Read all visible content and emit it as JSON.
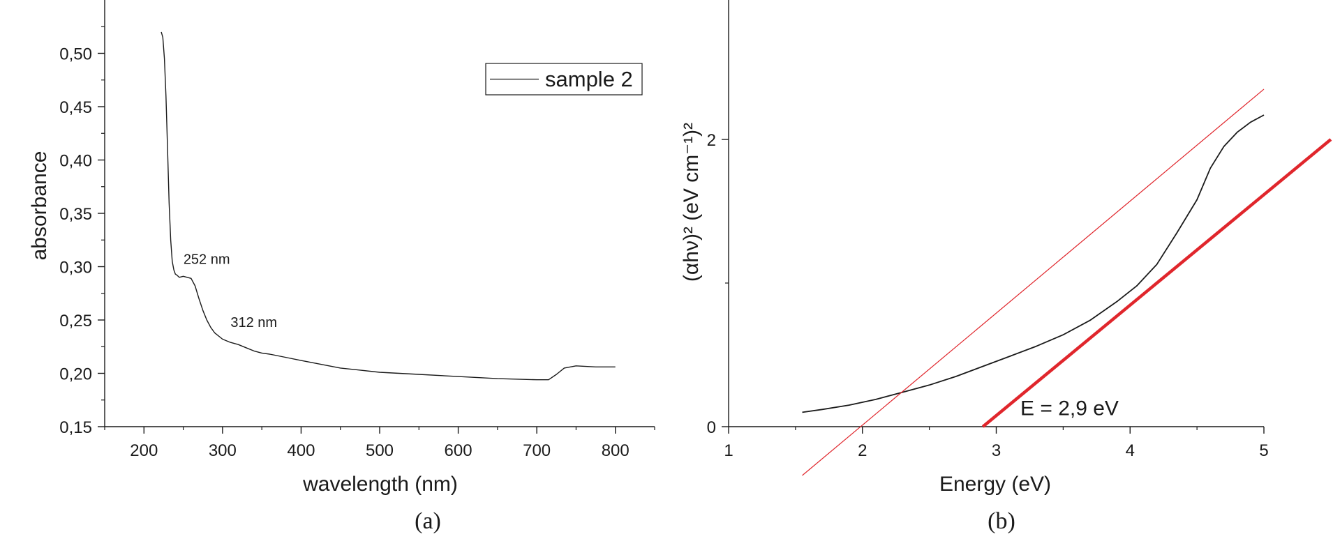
{
  "chart_data": [
    {
      "type": "line",
      "panel_label": "(a)",
      "xlabel": "wavelength (nm)",
      "ylabel": "absorbance",
      "xlim": [
        150,
        850
      ],
      "ylim": [
        0.15,
        0.55
      ],
      "xticks": [
        200,
        300,
        400,
        500,
        600,
        700,
        800
      ],
      "xtick_labels": [
        "200",
        "300",
        "400",
        "500",
        "600",
        "700",
        "800"
      ],
      "yticks": [
        0.15,
        0.2,
        0.25,
        0.3,
        0.35,
        0.4,
        0.45,
        0.5
      ],
      "ytick_labels": [
        "0,15",
        "0,20",
        "0,25",
        "0,30",
        "0,35",
        "0,40",
        "0,45",
        "0,50"
      ],
      "grid": false,
      "legend": {
        "placement": "top-right",
        "entries": [
          "sample 2"
        ]
      },
      "series": [
        {
          "name": "sample 2",
          "color": "#1a1a1a",
          "x": [
            222,
            224,
            226,
            228,
            230,
            232,
            234,
            236,
            238,
            240,
            242,
            245,
            250,
            255,
            260,
            265,
            270,
            275,
            280,
            285,
            290,
            300,
            310,
            320,
            330,
            340,
            350,
            360,
            380,
            400,
            450,
            500,
            550,
            600,
            650,
            700,
            715,
            725,
            735,
            750,
            775,
            800
          ],
          "y": [
            0.52,
            0.515,
            0.495,
            0.46,
            0.41,
            0.36,
            0.325,
            0.305,
            0.297,
            0.293,
            0.292,
            0.29,
            0.291,
            0.29,
            0.289,
            0.282,
            0.27,
            0.259,
            0.25,
            0.243,
            0.238,
            0.232,
            0.229,
            0.227,
            0.224,
            0.221,
            0.219,
            0.218,
            0.215,
            0.212,
            0.205,
            0.201,
            0.199,
            0.197,
            0.195,
            0.194,
            0.194,
            0.199,
            0.205,
            0.207,
            0.206,
            0.206
          ]
        }
      ],
      "annotations": [
        {
          "text": "252 nm",
          "x": 252,
          "y": 0.3
        },
        {
          "text": "312 nm",
          "x": 312,
          "y": 0.241
        }
      ]
    },
    {
      "type": "line",
      "panel_label": "(b)",
      "xlabel": "Energy (eV)",
      "ylabel": "(αhν)² (eV cm⁻¹)²",
      "xlim": [
        1,
        5
      ],
      "ylim": [
        -0.35,
        3.0
      ],
      "xticks": [
        1,
        2,
        3,
        4,
        5
      ],
      "xtick_labels": [
        "1",
        "2",
        "3",
        "4",
        "5"
      ],
      "yticks": [
        0,
        2
      ],
      "ytick_labels": [
        "0",
        "2"
      ],
      "grid": false,
      "series": [
        {
          "name": "",
          "color": "#1a1a1a",
          "x": [
            1.55,
            1.7,
            1.9,
            2.1,
            2.3,
            2.5,
            2.7,
            2.9,
            3.1,
            3.3,
            3.5,
            3.7,
            3.9,
            4.05,
            4.2,
            4.35,
            4.5,
            4.6,
            4.7,
            4.8,
            4.9,
            5.0
          ],
          "y": [
            0.1,
            0.12,
            0.15,
            0.19,
            0.24,
            0.29,
            0.35,
            0.42,
            0.49,
            0.56,
            0.64,
            0.74,
            0.87,
            0.98,
            1.13,
            1.35,
            1.58,
            1.8,
            1.95,
            2.05,
            2.12,
            2.17
          ]
        },
        {
          "name": "",
          "color": "#e0262c",
          "style": "thin",
          "x": [
            1.55,
            5.0
          ],
          "y": [
            -0.34,
            2.35
          ]
        },
        {
          "name": "",
          "color": "#e0262c",
          "style": "thick",
          "x": [
            2.9,
            5.5
          ],
          "y": [
            0.0,
            2.0
          ]
        }
      ],
      "annotations": [
        {
          "text": "E = 2,9 eV",
          "x": 3.18,
          "y": 0.08,
          "color": "#e0262c"
        }
      ]
    }
  ]
}
